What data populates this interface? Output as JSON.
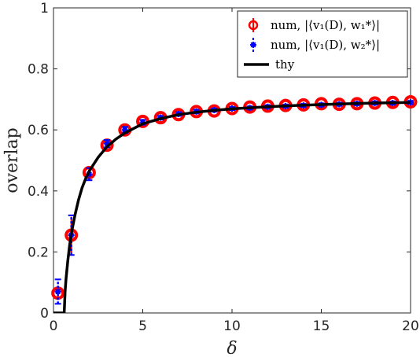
{
  "chart_data": {
    "type": "scatter",
    "xlabel": "δ",
    "ylabel": "overlap",
    "xlim": [
      0,
      20
    ],
    "ylim": [
      0,
      1
    ],
    "xticks": [
      0,
      5,
      10,
      15,
      20
    ],
    "yticks": [
      0,
      0.2,
      0.4,
      0.6,
      0.8,
      1
    ],
    "ytick_labels": [
      "0",
      "0.2",
      "0.4",
      "0.6",
      "0.8",
      "1"
    ],
    "grid": false,
    "legend_position": "top-right",
    "series": [
      {
        "name": "num, |⟨v₁(D), w₁*⟩|",
        "marker": "circle",
        "color": "#ff0000",
        "x": [
          0.25,
          1,
          2,
          3,
          4,
          5,
          6,
          7,
          8,
          9,
          10,
          11,
          12,
          13,
          14,
          15,
          16,
          17,
          18,
          19,
          20
        ],
        "y": [
          0.065,
          0.255,
          0.46,
          0.55,
          0.6,
          0.628,
          0.64,
          0.65,
          0.66,
          0.662,
          0.67,
          0.675,
          0.678,
          0.68,
          0.682,
          0.686,
          0.684,
          0.686,
          0.688,
          0.69,
          0.692
        ],
        "err": [
          0.02,
          0.06,
          0.02,
          0.01,
          0.01,
          0.008,
          0.006,
          0.006,
          0.006,
          0.005,
          0.005,
          0.005,
          0.005,
          0.005,
          0.005,
          0.005,
          0.005,
          0.005,
          0.005,
          0.005,
          0.005
        ]
      },
      {
        "name": "num, |⟨v₁(D), w₂*⟩|",
        "marker": "star",
        "color": "#0000ff",
        "x": [
          0.25,
          1,
          2,
          3,
          4,
          5,
          6,
          7,
          8,
          9,
          10,
          11,
          12,
          13,
          14,
          15,
          16,
          17,
          18,
          19,
          20
        ],
        "y": [
          0.07,
          0.255,
          0.455,
          0.555,
          0.6,
          0.625,
          0.64,
          0.652,
          0.66,
          0.665,
          0.67,
          0.672,
          0.676,
          0.678,
          0.68,
          0.682,
          0.684,
          0.686,
          0.688,
          0.688,
          0.69
        ],
        "err": [
          0.04,
          0.065,
          0.02,
          0.012,
          0.01,
          0.008,
          0.006,
          0.006,
          0.006,
          0.005,
          0.005,
          0.005,
          0.005,
          0.005,
          0.005,
          0.005,
          0.005,
          0.005,
          0.005,
          0.005,
          0.005
        ]
      },
      {
        "name": "thy",
        "type": "line",
        "color": "#000000",
        "x": [
          0,
          0.6,
          0.65,
          0.7,
          0.8,
          0.9,
          1.0,
          1.2,
          1.4,
          1.6,
          1.8,
          2.0,
          2.5,
          3,
          3.5,
          4,
          5,
          6,
          7,
          8,
          9,
          10,
          12,
          14,
          16,
          18,
          20
        ],
        "y": [
          0,
          0,
          0.07,
          0.11,
          0.17,
          0.22,
          0.26,
          0.32,
          0.37,
          0.41,
          0.44,
          0.465,
          0.51,
          0.545,
          0.57,
          0.59,
          0.62,
          0.637,
          0.65,
          0.658,
          0.664,
          0.669,
          0.676,
          0.681,
          0.685,
          0.688,
          0.69
        ]
      }
    ]
  }
}
